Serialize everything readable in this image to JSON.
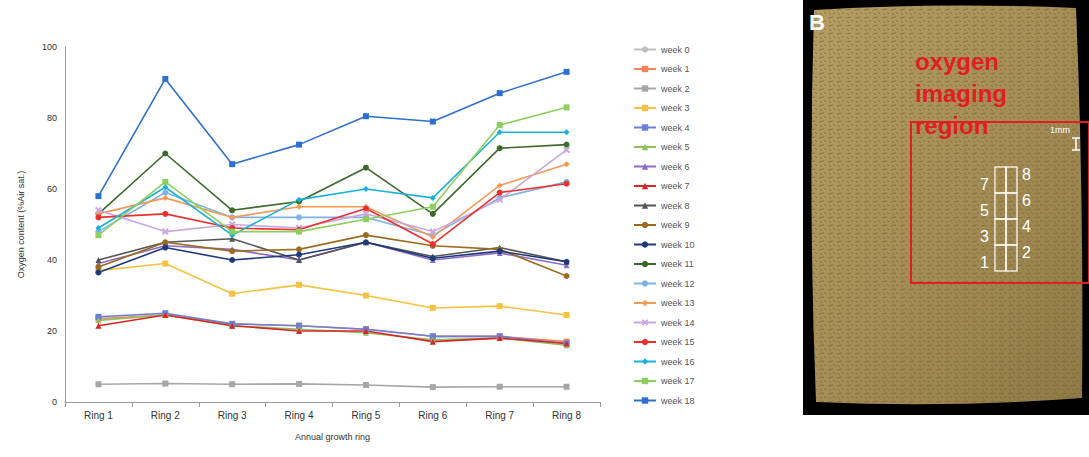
{
  "chart_data": {
    "type": "line",
    "x_label": "Annual growth ring",
    "y_label": "Oxygen content (%Air sat.)",
    "categories": [
      "Ring 1",
      "Ring 2",
      "Ring 3",
      "Ring 4",
      "Ring 5",
      "Ring 6",
      "Ring 7",
      "Ring 8"
    ],
    "ylim": [
      0,
      100
    ],
    "yticks": [
      0,
      20,
      40,
      60,
      80,
      100
    ],
    "grid": false,
    "legend": "right",
    "series": [
      {
        "name": "week 0",
        "color": "#bfbfbf",
        "marker": "none",
        "values": [
          null,
          null,
          null,
          null,
          null,
          null,
          null,
          null
        ]
      },
      {
        "name": "week 1",
        "color": "#f4845f",
        "marker": "square",
        "values": [
          23.5,
          24.5,
          22,
          21.5,
          20.5,
          18.5,
          18.5,
          17
        ]
      },
      {
        "name": "week 2",
        "color": "#a6a6a6",
        "marker": "square",
        "values": [
          5,
          5.2,
          5,
          5.1,
          4.8,
          4.2,
          4.3,
          4.3
        ]
      },
      {
        "name": "week 3",
        "color": "#f5c242",
        "marker": "square",
        "values": [
          37,
          39,
          30.5,
          33,
          30,
          26.5,
          27,
          24.5
        ]
      },
      {
        "name": "week 4",
        "color": "#6a7fd8",
        "marker": "square",
        "values": [
          24,
          25,
          22,
          21.5,
          20.5,
          18.5,
          18.5,
          16.5
        ]
      },
      {
        "name": "week 5",
        "color": "#8fbf5a",
        "marker": "triangle",
        "values": [
          23,
          24.5,
          21.5,
          20.5,
          19.5,
          17.5,
          18,
          16
        ]
      },
      {
        "name": "week 6",
        "color": "#8e6cc8",
        "marker": "triangle",
        "values": [
          39,
          44,
          43,
          40,
          45,
          40,
          42,
          38.5
        ]
      },
      {
        "name": "week 7",
        "color": "#d62728",
        "marker": "triangle",
        "values": [
          21.5,
          24.5,
          21.5,
          20,
          20,
          17,
          18,
          16.5
        ]
      },
      {
        "name": "week 8",
        "color": "#555555",
        "marker": "triangle",
        "values": [
          40,
          45,
          46,
          40,
          45,
          41,
          43.5,
          39.5
        ]
      },
      {
        "name": "week 9",
        "color": "#9c6b1e",
        "marker": "circle",
        "values": [
          38,
          45,
          42.5,
          43,
          47,
          44,
          43,
          35.5
        ]
      },
      {
        "name": "week 10",
        "color": "#1f3a7a",
        "marker": "circle",
        "values": [
          36.5,
          43.5,
          40,
          41.5,
          45,
          40.5,
          42.5,
          39.5
        ]
      },
      {
        "name": "week 11",
        "color": "#3a6b2a",
        "marker": "circle",
        "values": [
          53,
          70,
          54,
          56.5,
          66,
          53,
          71.5,
          72.5
        ]
      },
      {
        "name": "week 12",
        "color": "#7fb2e5",
        "marker": "circle",
        "values": [
          48,
          59,
          52,
          52,
          52,
          47,
          57.5,
          62
        ]
      },
      {
        "name": "week 13",
        "color": "#f59a55",
        "marker": "diamond",
        "values": [
          53,
          57.5,
          52,
          55,
          55,
          46.5,
          61,
          67
        ]
      },
      {
        "name": "week 14",
        "color": "#c9a6e0",
        "marker": "cross",
        "values": [
          54,
          48,
          50,
          49,
          53,
          48,
          57,
          71
        ]
      },
      {
        "name": "week 15",
        "color": "#e8312f",
        "marker": "circle",
        "values": [
          52,
          53,
          49,
          48.5,
          54.5,
          44.5,
          59,
          61.5
        ]
      },
      {
        "name": "week 16",
        "color": "#1ab0d8",
        "marker": "diamond",
        "values": [
          49,
          60.5,
          47,
          57,
          60,
          57.5,
          76,
          76
        ]
      },
      {
        "name": "week 17",
        "color": "#8ccf5e",
        "marker": "square",
        "values": [
          47,
          62,
          48,
          48,
          51.5,
          55,
          78,
          83
        ]
      },
      {
        "name": "week 18",
        "color": "#2f6fd0",
        "marker": "square",
        "values": [
          58,
          91,
          67,
          72.5,
          80.5,
          79,
          87,
          93
        ]
      }
    ]
  },
  "panel_b": {
    "label": "B",
    "annotation": "oxygen imaging region",
    "scale_bar": "1mm",
    "left_numbers": [
      7,
      5,
      3,
      1
    ],
    "right_numbers": [
      8,
      6,
      4,
      2
    ]
  }
}
